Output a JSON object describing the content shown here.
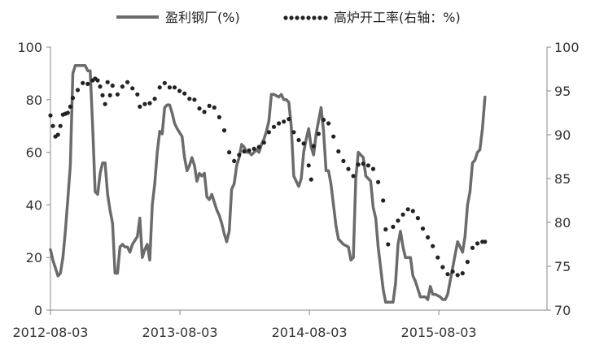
{
  "chart_data": {
    "type": "line",
    "x_range": [
      "2012-08-03",
      "2016-06-03"
    ],
    "x_tick_labels": [
      "2012-08-03",
      "2013-08-03",
      "2014-08-03",
      "2015-08-03"
    ],
    "x_tick_dates": [
      "2012-08-03",
      "2013-08-03",
      "2014-08-03",
      "2015-08-03"
    ],
    "y_left": {
      "range": [
        0,
        100
      ],
      "ticks": [
        0,
        20,
        40,
        60,
        80,
        100
      ]
    },
    "y_right": {
      "range": [
        70,
        100
      ],
      "ticks": [
        70,
        75,
        80,
        85,
        90,
        95,
        100
      ]
    },
    "grid": false,
    "legend_position": "top",
    "series": [
      {
        "name": "盈利钢厂(%)",
        "axis": "left",
        "style": "solid",
        "color": "#6b6b6b",
        "points": [
          [
            "2012-08-03",
            23
          ],
          [
            "2012-08-10",
            19
          ],
          [
            "2012-08-17",
            16
          ],
          [
            "2012-08-24",
            13
          ],
          [
            "2012-08-31",
            14
          ],
          [
            "2012-09-07",
            20
          ],
          [
            "2012-09-14",
            30
          ],
          [
            "2012-09-21",
            42
          ],
          [
            "2012-09-28",
            55
          ],
          [
            "2012-10-05",
            90
          ],
          [
            "2012-10-12",
            93
          ],
          [
            "2012-10-26",
            93
          ],
          [
            "2012-11-09",
            93
          ],
          [
            "2012-11-16",
            91
          ],
          [
            "2012-11-23",
            91
          ],
          [
            "2012-11-30",
            70
          ],
          [
            "2012-12-07",
            45
          ],
          [
            "2012-12-14",
            44
          ],
          [
            "2012-12-21",
            52
          ],
          [
            "2012-12-28",
            56
          ],
          [
            "2013-01-04",
            56
          ],
          [
            "2013-01-11",
            44
          ],
          [
            "2013-01-18",
            38
          ],
          [
            "2013-01-25",
            33
          ],
          [
            "2013-02-01",
            14
          ],
          [
            "2013-02-08",
            14
          ],
          [
            "2013-02-15",
            24
          ],
          [
            "2013-02-22",
            25
          ],
          [
            "2013-03-01",
            24
          ],
          [
            "2013-03-08",
            24
          ],
          [
            "2013-03-15",
            22
          ],
          [
            "2013-03-22",
            25
          ],
          [
            "2013-04-05",
            28
          ],
          [
            "2013-04-12",
            35
          ],
          [
            "2013-04-19",
            20
          ],
          [
            "2013-04-26",
            23
          ],
          [
            "2013-05-03",
            25
          ],
          [
            "2013-05-10",
            19
          ],
          [
            "2013-05-17",
            40
          ],
          [
            "2013-05-24",
            48
          ],
          [
            "2013-05-31",
            60
          ],
          [
            "2013-06-07",
            68
          ],
          [
            "2013-06-14",
            67
          ],
          [
            "2013-06-21",
            77
          ],
          [
            "2013-06-28",
            78
          ],
          [
            "2013-07-05",
            78
          ],
          [
            "2013-07-12",
            75
          ],
          [
            "2013-07-19",
            71
          ],
          [
            "2013-07-26",
            69
          ],
          [
            "2013-08-09",
            66
          ],
          [
            "2013-08-16",
            58
          ],
          [
            "2013-08-23",
            53
          ],
          [
            "2013-08-30",
            55
          ],
          [
            "2013-09-06",
            58
          ],
          [
            "2013-09-13",
            55
          ],
          [
            "2013-09-20",
            49
          ],
          [
            "2013-09-27",
            52
          ],
          [
            "2013-10-04",
            51
          ],
          [
            "2013-10-11",
            52
          ],
          [
            "2013-10-18",
            43
          ],
          [
            "2013-10-25",
            42
          ],
          [
            "2013-11-01",
            44
          ],
          [
            "2013-11-08",
            41
          ],
          [
            "2013-11-15",
            38
          ],
          [
            "2013-11-22",
            36
          ],
          [
            "2013-11-29",
            33
          ],
          [
            "2013-12-06",
            29
          ],
          [
            "2013-12-13",
            26
          ],
          [
            "2013-12-20",
            30
          ],
          [
            "2013-12-27",
            46
          ],
          [
            "2014-01-03",
            48
          ],
          [
            "2014-01-10",
            55
          ],
          [
            "2014-01-17",
            58
          ],
          [
            "2014-01-24",
            63
          ],
          [
            "2014-01-31",
            62
          ],
          [
            "2014-02-07",
            60
          ],
          [
            "2014-02-14",
            60
          ],
          [
            "2014-02-21",
            59
          ],
          [
            "2014-02-28",
            60
          ],
          [
            "2014-03-07",
            61
          ],
          [
            "2014-03-14",
            60
          ],
          [
            "2014-03-21",
            63
          ],
          [
            "2014-03-28",
            65
          ],
          [
            "2014-04-04",
            68
          ],
          [
            "2014-04-11",
            72
          ],
          [
            "2014-04-18",
            82
          ],
          [
            "2014-04-25",
            82
          ],
          [
            "2014-05-09",
            81
          ],
          [
            "2014-05-16",
            82
          ],
          [
            "2014-05-23",
            80
          ],
          [
            "2014-05-30",
            80
          ],
          [
            "2014-06-06",
            79
          ],
          [
            "2014-06-13",
            70
          ],
          [
            "2014-06-20",
            51
          ],
          [
            "2014-06-27",
            49
          ],
          [
            "2014-07-04",
            47
          ],
          [
            "2014-07-11",
            50
          ],
          [
            "2014-07-18",
            60
          ],
          [
            "2014-07-25",
            65
          ],
          [
            "2014-08-01",
            69
          ],
          [
            "2014-08-08",
            62
          ],
          [
            "2014-08-15",
            59
          ],
          [
            "2014-08-22",
            67
          ],
          [
            "2014-08-29",
            72
          ],
          [
            "2014-09-05",
            77
          ],
          [
            "2014-09-12",
            68
          ],
          [
            "2014-09-19",
            53
          ],
          [
            "2014-09-26",
            53
          ],
          [
            "2014-10-03",
            48
          ],
          [
            "2014-10-10",
            40
          ],
          [
            "2014-10-17",
            32
          ],
          [
            "2014-10-24",
            27
          ],
          [
            "2014-11-07",
            25
          ],
          [
            "2014-11-21",
            24
          ],
          [
            "2014-11-28",
            19
          ],
          [
            "2014-12-05",
            20
          ],
          [
            "2014-12-12",
            50
          ],
          [
            "2014-12-19",
            60
          ],
          [
            "2014-12-26",
            59
          ],
          [
            "2015-01-02",
            58
          ],
          [
            "2015-01-09",
            51
          ],
          [
            "2015-01-16",
            50
          ],
          [
            "2015-01-23",
            49
          ],
          [
            "2015-01-30",
            39
          ],
          [
            "2015-02-06",
            35
          ],
          [
            "2015-02-13",
            24
          ],
          [
            "2015-02-20",
            16
          ],
          [
            "2015-02-27",
            8
          ],
          [
            "2015-03-06",
            3
          ],
          [
            "2015-03-13",
            3
          ],
          [
            "2015-03-27",
            3
          ],
          [
            "2015-04-03",
            10
          ],
          [
            "2015-04-10",
            25
          ],
          [
            "2015-04-17",
            30
          ],
          [
            "2015-04-24",
            24
          ],
          [
            "2015-05-01",
            20
          ],
          [
            "2015-05-15",
            20
          ],
          [
            "2015-05-22",
            13
          ],
          [
            "2015-05-29",
            11
          ],
          [
            "2015-06-05",
            8
          ],
          [
            "2015-06-12",
            5
          ],
          [
            "2015-06-26",
            5
          ],
          [
            "2015-07-03",
            4
          ],
          [
            "2015-07-10",
            9
          ],
          [
            "2015-07-17",
            6
          ],
          [
            "2015-07-24",
            6
          ],
          [
            "2015-08-07",
            5
          ],
          [
            "2015-08-14",
            4
          ],
          [
            "2015-08-21",
            4
          ],
          [
            "2015-08-28",
            6
          ],
          [
            "2015-09-04",
            11
          ],
          [
            "2015-09-11",
            16
          ],
          [
            "2015-09-18",
            21
          ],
          [
            "2015-09-25",
            26
          ],
          [
            "2015-10-02",
            24
          ],
          [
            "2015-10-09",
            22
          ],
          [
            "2015-10-16",
            28
          ],
          [
            "2015-10-23",
            40
          ],
          [
            "2015-10-30",
            45
          ],
          [
            "2015-11-06",
            56
          ],
          [
            "2015-11-13",
            57
          ],
          [
            "2015-11-20",
            60
          ],
          [
            "2015-11-27",
            61
          ],
          [
            "2015-12-04",
            69
          ],
          [
            "2015-12-11",
            81
          ]
        ]
      },
      {
        "name": "高炉开工率(右轴：%)",
        "axis": "right",
        "style": "dotted",
        "color": "#222222",
        "points": [
          [
            "2012-08-03",
            92.2
          ],
          [
            "2012-08-10",
            91
          ],
          [
            "2012-08-17",
            89.8
          ],
          [
            "2012-08-24",
            90
          ],
          [
            "2012-08-31",
            91
          ],
          [
            "2012-09-07",
            92.3
          ],
          [
            "2012-09-14",
            92.4
          ],
          [
            "2012-09-21",
            92.5
          ],
          [
            "2012-09-28",
            93.2
          ],
          [
            "2012-10-05",
            94.2
          ],
          [
            "2012-10-19",
            95.1
          ],
          [
            "2012-11-02",
            95.9
          ],
          [
            "2012-11-16",
            95.8
          ],
          [
            "2012-11-30",
            96.2
          ],
          [
            "2012-12-07",
            96.4
          ],
          [
            "2012-12-14",
            96.2
          ],
          [
            "2012-12-21",
            95.5
          ],
          [
            "2012-12-28",
            94.5
          ],
          [
            "2013-01-04",
            93.5
          ],
          [
            "2013-01-11",
            96.0
          ],
          [
            "2013-01-18",
            94.5
          ],
          [
            "2013-01-25",
            95.6
          ],
          [
            "2013-02-08",
            94.6
          ],
          [
            "2013-02-22",
            95.5
          ],
          [
            "2013-03-08",
            96.0
          ],
          [
            "2013-03-22",
            95.3
          ],
          [
            "2013-04-05",
            94.6
          ],
          [
            "2013-04-12",
            93.2
          ],
          [
            "2013-04-26",
            93.5
          ],
          [
            "2013-05-10",
            93.6
          ],
          [
            "2013-05-24",
            94.1
          ],
          [
            "2013-06-07",
            95.4
          ],
          [
            "2013-06-21",
            95.9
          ],
          [
            "2013-07-05",
            95.4
          ],
          [
            "2013-07-19",
            95.4
          ],
          [
            "2013-08-02",
            95.0
          ],
          [
            "2013-08-16",
            94.7
          ],
          [
            "2013-08-30",
            94.1
          ],
          [
            "2013-09-13",
            94.0
          ],
          [
            "2013-09-27",
            93.0
          ],
          [
            "2013-10-11",
            92.6
          ],
          [
            "2013-10-25",
            93.3
          ],
          [
            "2013-11-08",
            93.1
          ],
          [
            "2013-11-22",
            92.0
          ],
          [
            "2013-12-06",
            90.5
          ],
          [
            "2013-12-20",
            88.0
          ],
          [
            "2014-01-03",
            87.0
          ],
          [
            "2014-01-17",
            87.7
          ],
          [
            "2014-01-31",
            88.1
          ],
          [
            "2014-02-14",
            88.2
          ],
          [
            "2014-02-28",
            88.4
          ],
          [
            "2014-03-14",
            88.6
          ],
          [
            "2014-03-28",
            89.1
          ],
          [
            "2014-04-11",
            90.3
          ],
          [
            "2014-04-25",
            90.9
          ],
          [
            "2014-05-09",
            91.3
          ],
          [
            "2014-05-23",
            91.5
          ],
          [
            "2014-06-06",
            91.8
          ],
          [
            "2014-06-20",
            90.3
          ],
          [
            "2014-07-04",
            89.4
          ],
          [
            "2014-07-18",
            89.0
          ],
          [
            "2014-08-01",
            86.5
          ],
          [
            "2014-08-08",
            84.9
          ],
          [
            "2014-08-15",
            88.7
          ],
          [
            "2014-08-29",
            90.1
          ],
          [
            "2014-09-12",
            91.7
          ],
          [
            "2014-09-26",
            91.3
          ],
          [
            "2014-10-10",
            89.8
          ],
          [
            "2014-10-24",
            88.1
          ],
          [
            "2014-11-07",
            87.0
          ],
          [
            "2014-11-21",
            86.1
          ],
          [
            "2014-12-05",
            85.3
          ],
          [
            "2014-12-19",
            86.6
          ],
          [
            "2015-01-02",
            86.7
          ],
          [
            "2015-01-16",
            86.5
          ],
          [
            "2015-01-30",
            86.1
          ],
          [
            "2015-02-13",
            84.6
          ],
          [
            "2015-02-27",
            82.5
          ],
          [
            "2015-03-06",
            79.2
          ],
          [
            "2015-03-13",
            77.5
          ],
          [
            "2015-03-27",
            79.5
          ],
          [
            "2015-04-10",
            80.2
          ],
          [
            "2015-04-24",
            80.9
          ],
          [
            "2015-05-08",
            81.5
          ],
          [
            "2015-05-22",
            81.3
          ],
          [
            "2015-06-05",
            80.5
          ],
          [
            "2015-06-19",
            79.3
          ],
          [
            "2015-07-03",
            78.3
          ],
          [
            "2015-07-17",
            77.3
          ],
          [
            "2015-07-31",
            76.0
          ],
          [
            "2015-08-14",
            74.9
          ],
          [
            "2015-08-28",
            74.1
          ],
          [
            "2015-09-11",
            74.4
          ],
          [
            "2015-09-25",
            74.0
          ],
          [
            "2015-10-09",
            74.2
          ],
          [
            "2015-10-23",
            75.5
          ],
          [
            "2015-11-06",
            77.1
          ],
          [
            "2015-11-20",
            77.6
          ],
          [
            "2015-12-04",
            77.8
          ],
          [
            "2015-12-11",
            77.8
          ]
        ]
      }
    ]
  }
}
